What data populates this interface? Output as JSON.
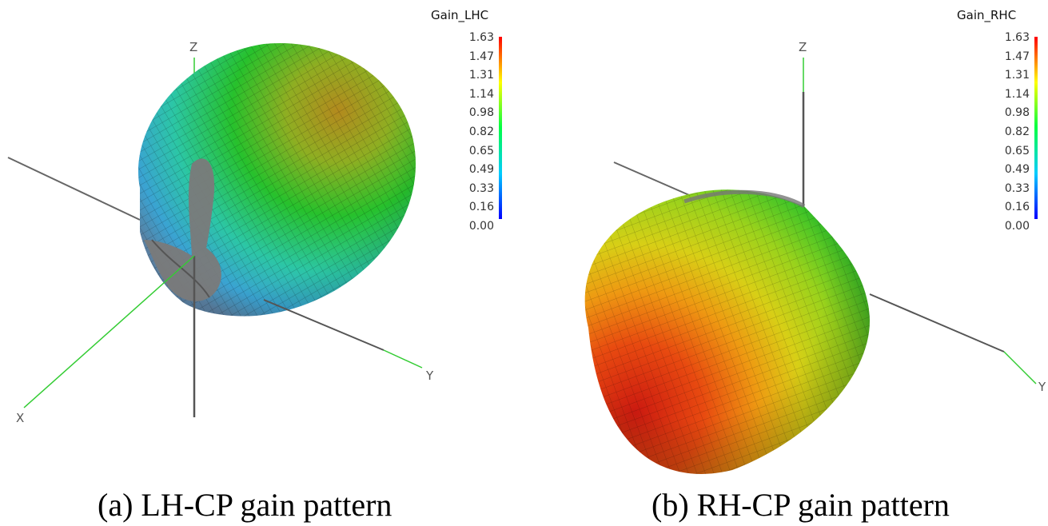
{
  "colormap": {
    "stops": [
      "#0000ff",
      "#00ccff",
      "#00ff44",
      "#ffff00",
      "#ff0000"
    ],
    "ticks": [
      "1.63",
      "1.47",
      "1.31",
      "1.14",
      "0.98",
      "0.82",
      "0.65",
      "0.49",
      "0.33",
      "0.16",
      "0.00"
    ]
  },
  "panels": [
    {
      "caption": "(a) LH-CP gain pattern",
      "colorbar_title": "Gain_LHC",
      "axes": {
        "x": "X",
        "y": "Y",
        "z": "Z"
      },
      "gain_range": [
        0.0,
        1.63
      ]
    },
    {
      "caption": "(b) RH-CP gain pattern",
      "colorbar_title": "Gain_RHC",
      "axes": {
        "y": "Y",
        "z": "Z"
      },
      "gain_range": [
        0.0,
        1.63
      ]
    }
  ]
}
